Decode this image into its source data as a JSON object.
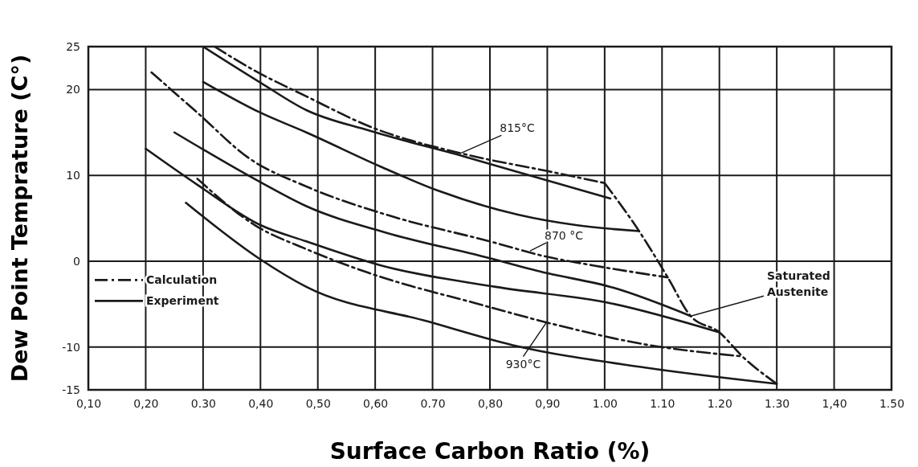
{
  "chart_data": {
    "type": "line",
    "xlabel": "Surface Carbon Ratio (%)",
    "ylabel": "Dew Point Temprature (C°)",
    "xlim": [
      0.1,
      1.5
    ],
    "ylim": [
      -15,
      25
    ],
    "xticks": [
      {
        "value": 0.1,
        "label": "0,10"
      },
      {
        "value": 0.2,
        "label": "0,20"
      },
      {
        "value": 0.3,
        "label": "0.30"
      },
      {
        "value": 0.4,
        "label": "0,40"
      },
      {
        "value": 0.5,
        "label": "0,50"
      },
      {
        "value": 0.6,
        "label": "0,60"
      },
      {
        "value": 0.7,
        "label": "0.70"
      },
      {
        "value": 0.8,
        "label": "0,80"
      },
      {
        "value": 0.9,
        "label": "0,90"
      },
      {
        "value": 1.0,
        "label": "1.00"
      },
      {
        "value": 1.1,
        "label": "1.10"
      },
      {
        "value": 1.2,
        "label": "1.20"
      },
      {
        "value": 1.3,
        "label": "1.30"
      },
      {
        "value": 1.4,
        "label": "1,40"
      },
      {
        "value": 1.5,
        "label": "1.50"
      }
    ],
    "yticks": [
      25,
      20,
      10,
      0,
      -10,
      -15
    ],
    "grid": true,
    "legend": "left",
    "marker": "none",
    "series": [
      {
        "name": "Calculation",
        "color": "#1a1a1a",
        "line_style": "dashed",
        "x": [
          0.32,
          0.39,
          0.48,
          0.59,
          0.76,
          0.9,
          1.0
        ],
        "values": [
          25.0,
          22.2,
          19.2,
          15.7,
          12.4,
          10.5,
          9.1
        ]
      },
      {
        "name": "Experiment",
        "color": "#1a1a1a",
        "line_style": "solid",
        "x": [
          0.3,
          0.4,
          0.48,
          0.59,
          0.76,
          0.9,
          1.01
        ],
        "values": [
          25.0,
          20.8,
          17.6,
          15.2,
          12.1,
          9.4,
          7.3
        ]
      },
      {
        "color": "#1a1a1a",
        "line_style": "solid",
        "x": [
          0.3,
          0.4,
          0.48,
          0.61,
          0.71,
          0.85,
          0.95,
          1.06
        ],
        "values": [
          20.9,
          17.3,
          15.0,
          11.0,
          8.2,
          5.4,
          4.2,
          3.5
        ]
      },
      {
        "color": "#1a1a1a",
        "line_style": "dashed",
        "x": [
          0.21,
          0.29,
          0.38,
          0.48,
          0.62,
          0.8,
          0.9,
          0.98,
          1.11
        ],
        "values": [
          22.0,
          17.3,
          12.0,
          8.7,
          5.4,
          2.3,
          0.5,
          -0.5,
          -1.9
        ]
      },
      {
        "color": "#1a1a1a",
        "line_style": "solid",
        "x": [
          0.25,
          0.4,
          0.48,
          0.62,
          0.79,
          0.9,
          1.01,
          1.15
        ],
        "values": [
          15.0,
          9.2,
          6.4,
          3.3,
          0.5,
          -1.4,
          -3.0,
          -6.4
        ]
      },
      {
        "color": "#1a1a1a",
        "line_style": "solid",
        "x": [
          0.2,
          0.29,
          0.4,
          0.48,
          0.61,
          0.81,
          1.01,
          1.2
        ],
        "values": [
          13.1,
          8.9,
          4.2,
          2.3,
          -0.5,
          -3.0,
          -4.9,
          -8.3
        ]
      },
      {
        "color": "#1a1a1a",
        "line_style": "dashed",
        "x": [
          0.29,
          0.39,
          0.48,
          0.59,
          0.78,
          0.92,
          1.07,
          1.24
        ],
        "values": [
          9.6,
          4.2,
          1.4,
          -1.4,
          -5.0,
          -7.5,
          -9.7,
          -11.1
        ]
      },
      {
        "color": "#1a1a1a",
        "line_style": "solid",
        "x": [
          0.27,
          0.4,
          0.48,
          0.69,
          0.84,
          1.07,
          1.3
        ],
        "values": [
          6.8,
          0.2,
          -3.0,
          -7.0,
          -9.8,
          -12.4,
          -14.3
        ]
      },
      {
        "color": "#1a1a1a",
        "line_style": "dashed",
        "x": [
          1.0,
          1.06,
          1.11,
          1.15,
          1.2,
          1.24,
          1.3
        ],
        "values": [
          9.1,
          3.5,
          -1.9,
          -6.4,
          -8.3,
          -11.1,
          -14.3
        ]
      }
    ],
    "annotations": [
      {
        "text": "815°C",
        "x": 0.75,
        "y": 12.6
      },
      {
        "text": "870 °C",
        "x": 0.87,
        "y": 1.2
      },
      {
        "text": "930°C",
        "x": 0.9,
        "y": -7.0
      },
      {
        "text": "Saturated Austenite",
        "x": 1.15,
        "y": -6.4
      }
    ]
  }
}
